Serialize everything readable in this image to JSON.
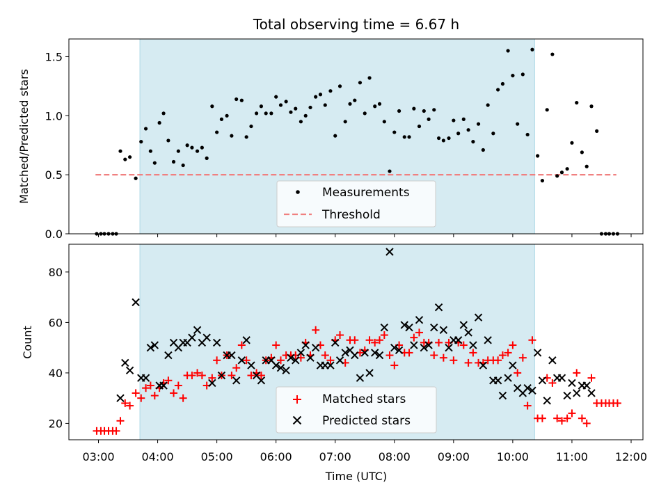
{
  "chart_data": {
    "type": "scatter",
    "title": "Total observing time = 6.67 h",
    "xlabel": "Time (UTC)",
    "x_ticks": [
      "03:00",
      "04:00",
      "05:00",
      "06:00",
      "07:00",
      "08:00",
      "09:00",
      "10:00",
      "11:00",
      "12:00"
    ],
    "xlim": [
      2.5,
      12.2
    ],
    "highlight_span": [
      3.7,
      10.37
    ],
    "colors": {
      "shade": "#add8e6",
      "threshold": "#f08080",
      "matched": "#ff0000",
      "predicted": "#000000"
    },
    "top": {
      "ylabel": "Matched/Predicted stars",
      "ylim": [
        0,
        1.65
      ],
      "y_ticks": [
        0.0,
        0.5,
        1.0,
        1.5
      ],
      "y_tick_labels": [
        "0.0",
        "0.5",
        "1.0",
        "1.5"
      ],
      "threshold": 0.5,
      "threshold_x": [
        2.95,
        11.75
      ],
      "legend": [
        "Measurements",
        "Threshold"
      ],
      "measurements": [
        [
          2.97,
          0
        ],
        [
          3.04,
          0
        ],
        [
          3.1,
          0
        ],
        [
          3.17,
          0
        ],
        [
          3.24,
          0
        ],
        [
          3.3,
          0
        ],
        [
          3.37,
          0.7
        ],
        [
          3.45,
          0.63
        ],
        [
          3.53,
          0.65
        ],
        [
          3.63,
          0.47
        ],
        [
          3.72,
          0.78
        ],
        [
          3.8,
          0.89
        ],
        [
          3.88,
          0.7
        ],
        [
          3.95,
          0.6
        ],
        [
          4.03,
          0.94
        ],
        [
          4.1,
          1.02
        ],
        [
          4.18,
          0.79
        ],
        [
          4.27,
          0.61
        ],
        [
          4.35,
          0.7
        ],
        [
          4.43,
          0.58
        ],
        [
          4.5,
          0.75
        ],
        [
          4.58,
          0.73
        ],
        [
          4.67,
          0.7
        ],
        [
          4.75,
          0.73
        ],
        [
          4.83,
          0.64
        ],
        [
          4.92,
          1.08
        ],
        [
          5.0,
          0.86
        ],
        [
          5.08,
          0.97
        ],
        [
          5.17,
          1.0
        ],
        [
          5.25,
          0.83
        ],
        [
          5.33,
          1.14
        ],
        [
          5.42,
          1.13
        ],
        [
          5.5,
          0.82
        ],
        [
          5.58,
          0.91
        ],
        [
          5.67,
          1.02
        ],
        [
          5.75,
          1.08
        ],
        [
          5.83,
          1.02
        ],
        [
          5.92,
          1.02
        ],
        [
          6.0,
          1.16
        ],
        [
          6.08,
          1.09
        ],
        [
          6.17,
          1.12
        ],
        [
          6.25,
          1.03
        ],
        [
          6.33,
          1.06
        ],
        [
          6.42,
          0.95
        ],
        [
          6.5,
          1.0
        ],
        [
          6.58,
          1.07
        ],
        [
          6.67,
          1.16
        ],
        [
          6.75,
          1.18
        ],
        [
          6.83,
          1.09
        ],
        [
          6.92,
          1.21
        ],
        [
          7.0,
          0.83
        ],
        [
          7.08,
          1.25
        ],
        [
          7.17,
          0.95
        ],
        [
          7.25,
          1.1
        ],
        [
          7.33,
          1.13
        ],
        [
          7.42,
          1.28
        ],
        [
          7.5,
          1.02
        ],
        [
          7.58,
          1.32
        ],
        [
          7.67,
          1.08
        ],
        [
          7.75,
          1.1
        ],
        [
          7.83,
          0.95
        ],
        [
          7.92,
          0.53
        ],
        [
          8.0,
          0.86
        ],
        [
          8.08,
          1.04
        ],
        [
          8.17,
          0.82
        ],
        [
          8.25,
          0.82
        ],
        [
          8.33,
          1.06
        ],
        [
          8.42,
          0.91
        ],
        [
          8.5,
          1.04
        ],
        [
          8.58,
          0.97
        ],
        [
          8.67,
          1.05
        ],
        [
          8.75,
          0.81
        ],
        [
          8.83,
          0.79
        ],
        [
          8.92,
          0.81
        ],
        [
          9.0,
          0.96
        ],
        [
          9.08,
          0.85
        ],
        [
          9.17,
          0.97
        ],
        [
          9.25,
          0.88
        ],
        [
          9.33,
          0.78
        ],
        [
          9.42,
          0.93
        ],
        [
          9.5,
          0.71
        ],
        [
          9.58,
          1.09
        ],
        [
          9.67,
          0.85
        ],
        [
          9.75,
          1.22
        ],
        [
          9.83,
          1.27
        ],
        [
          9.92,
          1.55
        ],
        [
          10.0,
          1.34
        ],
        [
          10.08,
          0.93
        ],
        [
          10.17,
          1.35
        ],
        [
          10.25,
          0.84
        ],
        [
          10.33,
          1.56
        ],
        [
          10.42,
          0.66
        ],
        [
          10.5,
          0.45
        ],
        [
          10.58,
          1.05
        ],
        [
          10.67,
          1.52
        ],
        [
          10.75,
          0.49
        ],
        [
          10.83,
          0.52
        ],
        [
          10.92,
          0.55
        ],
        [
          11.0,
          0.77
        ],
        [
          11.08,
          1.11
        ],
        [
          11.17,
          0.69
        ],
        [
          11.25,
          0.57
        ],
        [
          11.33,
          1.08
        ],
        [
          11.42,
          0.87
        ],
        [
          11.5,
          0
        ],
        [
          11.57,
          0
        ],
        [
          11.63,
          0
        ],
        [
          11.7,
          0
        ],
        [
          11.77,
          0
        ]
      ]
    },
    "bottom": {
      "ylabel": "Count",
      "ylim": [
        13.5,
        91
      ],
      "y_ticks": [
        20,
        40,
        60,
        80
      ],
      "y_tick_labels": [
        "20",
        "40",
        "60",
        "80"
      ],
      "legend": [
        "Matched stars",
        "Predicted stars"
      ],
      "matched": [
        [
          2.97,
          17
        ],
        [
          3.04,
          17
        ],
        [
          3.1,
          17
        ],
        [
          3.17,
          17
        ],
        [
          3.24,
          17
        ],
        [
          3.3,
          17
        ],
        [
          3.37,
          21
        ],
        [
          3.45,
          28
        ],
        [
          3.53,
          27
        ],
        [
          3.63,
          32
        ],
        [
          3.72,
          30
        ],
        [
          3.8,
          34
        ],
        [
          3.88,
          35
        ],
        [
          3.95,
          31
        ],
        [
          4.03,
          34
        ],
        [
          4.1,
          36
        ],
        [
          4.18,
          37
        ],
        [
          4.27,
          32
        ],
        [
          4.35,
          35
        ],
        [
          4.43,
          30
        ],
        [
          4.5,
          39
        ],
        [
          4.58,
          39
        ],
        [
          4.67,
          40
        ],
        [
          4.75,
          39
        ],
        [
          4.83,
          35
        ],
        [
          4.92,
          38
        ],
        [
          5.0,
          45
        ],
        [
          5.08,
          39
        ],
        [
          5.17,
          47
        ],
        [
          5.25,
          39
        ],
        [
          5.33,
          42
        ],
        [
          5.42,
          51
        ],
        [
          5.5,
          45
        ],
        [
          5.58,
          39
        ],
        [
          5.67,
          40
        ],
        [
          5.75,
          39
        ],
        [
          5.83,
          45
        ],
        [
          5.92,
          46
        ],
        [
          6.0,
          51
        ],
        [
          6.08,
          45
        ],
        [
          6.17,
          47
        ],
        [
          6.25,
          47
        ],
        [
          6.33,
          47
        ],
        [
          6.42,
          46
        ],
        [
          6.5,
          52
        ],
        [
          6.58,
          47
        ],
        [
          6.67,
          57
        ],
        [
          6.75,
          51
        ],
        [
          6.83,
          47
        ],
        [
          6.92,
          45
        ],
        [
          7.0,
          53
        ],
        [
          7.08,
          55
        ],
        [
          7.17,
          44
        ],
        [
          7.25,
          53
        ],
        [
          7.33,
          53
        ],
        [
          7.42,
          48
        ],
        [
          7.5,
          49
        ],
        [
          7.58,
          53
        ],
        [
          7.67,
          52
        ],
        [
          7.75,
          53
        ],
        [
          7.83,
          55
        ],
        [
          7.92,
          47
        ],
        [
          8.0,
          43
        ],
        [
          8.08,
          51
        ],
        [
          8.17,
          48
        ],
        [
          8.25,
          48
        ],
        [
          8.33,
          54
        ],
        [
          8.42,
          56
        ],
        [
          8.5,
          52
        ],
        [
          8.58,
          52
        ],
        [
          8.67,
          47
        ],
        [
          8.75,
          52
        ],
        [
          8.83,
          46
        ],
        [
          8.92,
          52
        ],
        [
          9.0,
          45
        ],
        [
          9.08,
          52
        ],
        [
          9.17,
          51
        ],
        [
          9.25,
          44
        ],
        [
          9.33,
          48
        ],
        [
          9.42,
          44
        ],
        [
          9.5,
          44
        ],
        [
          9.58,
          45
        ],
        [
          9.67,
          45
        ],
        [
          9.75,
          45
        ],
        [
          9.83,
          47
        ],
        [
          9.92,
          48
        ],
        [
          10.0,
          51
        ],
        [
          10.08,
          40
        ],
        [
          10.17,
          46
        ],
        [
          10.25,
          27
        ],
        [
          10.33,
          53
        ],
        [
          10.42,
          22
        ],
        [
          10.5,
          22
        ],
        [
          10.58,
          38
        ],
        [
          10.67,
          36
        ],
        [
          10.75,
          22
        ],
        [
          10.83,
          21
        ],
        [
          10.92,
          22
        ],
        [
          11.0,
          24
        ],
        [
          11.08,
          40
        ],
        [
          11.17,
          22
        ],
        [
          11.25,
          20
        ],
        [
          11.33,
          38
        ],
        [
          11.42,
          28
        ],
        [
          11.5,
          28
        ],
        [
          11.57,
          28
        ],
        [
          11.63,
          28
        ],
        [
          11.7,
          28
        ],
        [
          11.77,
          28
        ]
      ],
      "predicted": [
        [
          3.37,
          30
        ],
        [
          3.45,
          44
        ],
        [
          3.53,
          41
        ],
        [
          3.63,
          68
        ],
        [
          3.72,
          38
        ],
        [
          3.8,
          38
        ],
        [
          3.88,
          50
        ],
        [
          3.95,
          51
        ],
        [
          4.03,
          35
        ],
        [
          4.1,
          35
        ],
        [
          4.18,
          47
        ],
        [
          4.27,
          52
        ],
        [
          4.35,
          50
        ],
        [
          4.43,
          52
        ],
        [
          4.5,
          52
        ],
        [
          4.58,
          54
        ],
        [
          4.67,
          57
        ],
        [
          4.75,
          52
        ],
        [
          4.83,
          54
        ],
        [
          4.92,
          36
        ],
        [
          5.0,
          52
        ],
        [
          5.08,
          39
        ],
        [
          5.17,
          47
        ],
        [
          5.25,
          47
        ],
        [
          5.33,
          37
        ],
        [
          5.42,
          45
        ],
        [
          5.5,
          53
        ],
        [
          5.58,
          43
        ],
        [
          5.67,
          39
        ],
        [
          5.75,
          37
        ],
        [
          5.83,
          45
        ],
        [
          5.92,
          45
        ],
        [
          6.0,
          43
        ],
        [
          6.08,
          42
        ],
        [
          6.17,
          41
        ],
        [
          6.25,
          46
        ],
        [
          6.33,
          45
        ],
        [
          6.42,
          48
        ],
        [
          6.5,
          51
        ],
        [
          6.58,
          46
        ],
        [
          6.67,
          50
        ],
        [
          6.75,
          43
        ],
        [
          6.83,
          43
        ],
        [
          6.92,
          43
        ],
        [
          7.0,
          52
        ],
        [
          7.08,
          45
        ],
        [
          7.17,
          48
        ],
        [
          7.25,
          49
        ],
        [
          7.33,
          47
        ],
        [
          7.42,
          38
        ],
        [
          7.5,
          48
        ],
        [
          7.58,
          40
        ],
        [
          7.67,
          48
        ],
        [
          7.75,
          47
        ],
        [
          7.83,
          58
        ],
        [
          7.92,
          88
        ],
        [
          8.0,
          50
        ],
        [
          8.08,
          49
        ],
        [
          8.17,
          59
        ],
        [
          8.25,
          58
        ],
        [
          8.33,
          51
        ],
        [
          8.42,
          61
        ],
        [
          8.5,
          50
        ],
        [
          8.58,
          51
        ],
        [
          8.67,
          58
        ],
        [
          8.75,
          66
        ],
        [
          8.83,
          57
        ],
        [
          8.92,
          50
        ],
        [
          9.0,
          53
        ],
        [
          9.08,
          53
        ],
        [
          9.17,
          59
        ],
        [
          9.25,
          56
        ],
        [
          9.33,
          51
        ],
        [
          9.42,
          62
        ],
        [
          9.5,
          43
        ],
        [
          9.58,
          53
        ],
        [
          9.67,
          37
        ],
        [
          9.75,
          37
        ],
        [
          9.83,
          31
        ],
        [
          9.92,
          38
        ],
        [
          10.0,
          43
        ],
        [
          10.08,
          34
        ],
        [
          10.17,
          32
        ],
        [
          10.25,
          34
        ],
        [
          10.33,
          33
        ],
        [
          10.42,
          48
        ],
        [
          10.5,
          37
        ],
        [
          10.58,
          29
        ],
        [
          10.67,
          45
        ],
        [
          10.75,
          38
        ],
        [
          10.83,
          38
        ],
        [
          10.92,
          31
        ],
        [
          11.0,
          36
        ],
        [
          11.08,
          32
        ],
        [
          11.17,
          35
        ],
        [
          11.25,
          35
        ],
        [
          11.33,
          32
        ]
      ]
    }
  }
}
